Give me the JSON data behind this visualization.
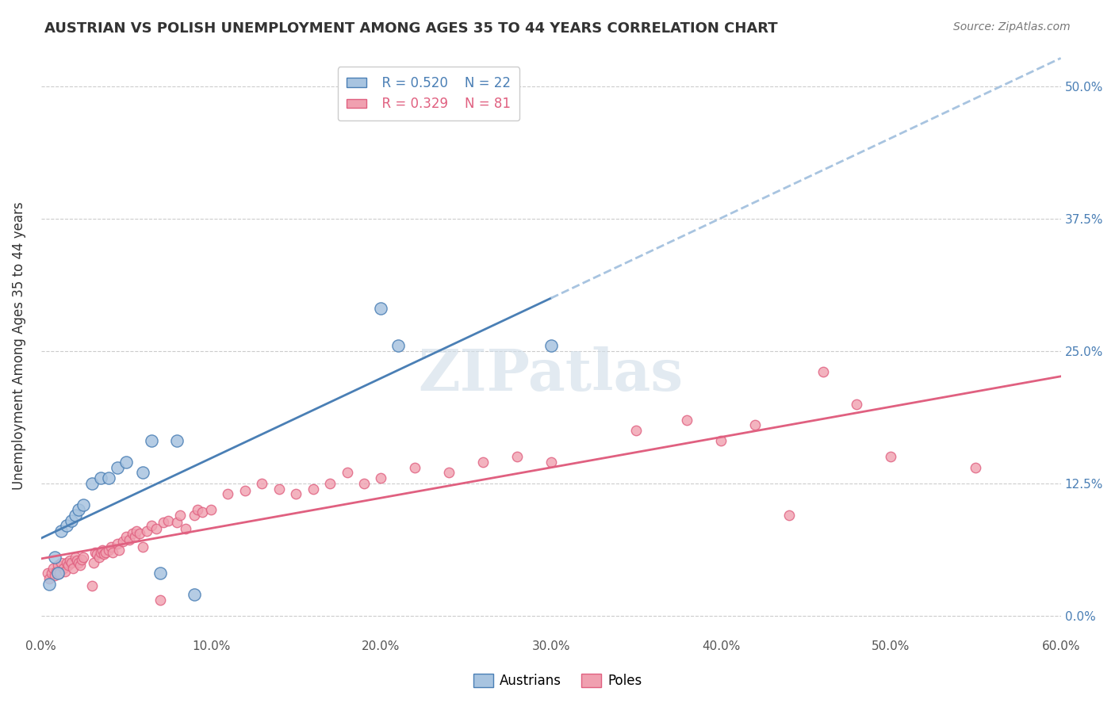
{
  "title": "AUSTRIAN VS POLISH UNEMPLOYMENT AMONG AGES 35 TO 44 YEARS CORRELATION CHART",
  "source": "Source: ZipAtlas.com",
  "ylabel": "Unemployment Among Ages 35 to 44 years",
  "xlabel_ticks": [
    "0.0%",
    "10.0%",
    "20.0%",
    "30.0%",
    "40.0%",
    "50.0%",
    "60.0%"
  ],
  "ylabel_ticks": [
    "0.0%",
    "12.5%",
    "25.0%",
    "37.5%",
    "50.0%"
  ],
  "xlim": [
    0.0,
    0.6
  ],
  "ylim": [
    -0.02,
    0.53
  ],
  "legend_r_austrians": "R = 0.520",
  "legend_n_austrians": "N = 22",
  "legend_r_poles": "R = 0.329",
  "legend_n_poles": "N = 81",
  "color_austrians": "#a8c4e0",
  "color_poles": "#f0a0b0",
  "color_line_austrians": "#4a7fb5",
  "color_line_poles": "#e06080",
  "color_dashed_austrians": "#a8c4e0",
  "watermark": "ZIPatlas",
  "austrians_x": [
    0.005,
    0.008,
    0.01,
    0.012,
    0.015,
    0.018,
    0.02,
    0.022,
    0.025,
    0.03,
    0.035,
    0.04,
    0.045,
    0.05,
    0.06,
    0.065,
    0.07,
    0.08,
    0.09,
    0.2,
    0.21,
    0.3
  ],
  "austrians_y": [
    0.03,
    0.055,
    0.04,
    0.08,
    0.085,
    0.09,
    0.095,
    0.1,
    0.105,
    0.125,
    0.13,
    0.13,
    0.14,
    0.145,
    0.135,
    0.165,
    0.04,
    0.165,
    0.02,
    0.29,
    0.255,
    0.255
  ],
  "poles_x": [
    0.004,
    0.005,
    0.006,
    0.007,
    0.008,
    0.009,
    0.01,
    0.011,
    0.012,
    0.013,
    0.014,
    0.015,
    0.016,
    0.017,
    0.018,
    0.019,
    0.02,
    0.021,
    0.022,
    0.023,
    0.024,
    0.025,
    0.03,
    0.031,
    0.032,
    0.033,
    0.034,
    0.035,
    0.036,
    0.037,
    0.038,
    0.04,
    0.041,
    0.042,
    0.045,
    0.046,
    0.048,
    0.05,
    0.052,
    0.054,
    0.055,
    0.056,
    0.058,
    0.06,
    0.062,
    0.065,
    0.068,
    0.07,
    0.072,
    0.075,
    0.08,
    0.082,
    0.085,
    0.09,
    0.092,
    0.095,
    0.1,
    0.11,
    0.12,
    0.13,
    0.14,
    0.15,
    0.16,
    0.17,
    0.18,
    0.19,
    0.2,
    0.22,
    0.24,
    0.26,
    0.28,
    0.3,
    0.35,
    0.38,
    0.4,
    0.42,
    0.44,
    0.46,
    0.48,
    0.5,
    0.55
  ],
  "poles_y": [
    0.04,
    0.035,
    0.04,
    0.045,
    0.038,
    0.042,
    0.048,
    0.04,
    0.05,
    0.045,
    0.042,
    0.05,
    0.048,
    0.052,
    0.05,
    0.045,
    0.055,
    0.052,
    0.05,
    0.048,
    0.053,
    0.055,
    0.028,
    0.05,
    0.06,
    0.058,
    0.055,
    0.06,
    0.062,
    0.058,
    0.06,
    0.062,
    0.065,
    0.06,
    0.068,
    0.062,
    0.07,
    0.075,
    0.072,
    0.078,
    0.075,
    0.08,
    0.078,
    0.065,
    0.08,
    0.085,
    0.082,
    0.015,
    0.088,
    0.09,
    0.088,
    0.095,
    0.082,
    0.095,
    0.1,
    0.098,
    0.1,
    0.115,
    0.118,
    0.125,
    0.12,
    0.115,
    0.12,
    0.125,
    0.135,
    0.125,
    0.13,
    0.14,
    0.135,
    0.145,
    0.15,
    0.145,
    0.175,
    0.185,
    0.165,
    0.18,
    0.095,
    0.23,
    0.2,
    0.15,
    0.14
  ]
}
